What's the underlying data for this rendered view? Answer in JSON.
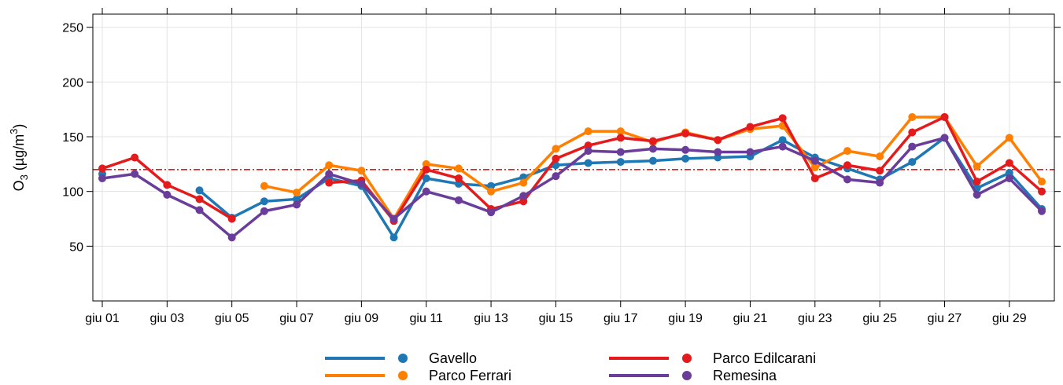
{
  "chart_data": {
    "type": "line",
    "ylabel": {
      "base": "O",
      "sub": "3",
      "mid": " (µg/m",
      "sup": "3",
      "end": ")"
    },
    "ylim": [
      0,
      262
    ],
    "y_ticks": [
      50,
      100,
      150,
      200,
      250
    ],
    "x": [
      "giu 01",
      "giu 02",
      "giu 03",
      "giu 04",
      "giu 05",
      "giu 06",
      "giu 07",
      "giu 08",
      "giu 09",
      "giu 10",
      "giu 11",
      "giu 12",
      "giu 13",
      "giu 14",
      "giu 15",
      "giu 16",
      "giu 17",
      "giu 18",
      "giu 19",
      "giu 20",
      "giu 21",
      "giu 22",
      "giu 23",
      "giu 24",
      "giu 25",
      "giu 26",
      "giu 27",
      "giu 28",
      "giu 29",
      "giu 30"
    ],
    "x_tick_labels": [
      "giu 01",
      "giu 03",
      "giu 05",
      "giu 07",
      "giu 09",
      "giu 11",
      "giu 13",
      "giu 15",
      "giu 17",
      "giu 19",
      "giu 21",
      "giu 23",
      "giu 25",
      "giu 27",
      "giu 29"
    ],
    "threshold": {
      "value": 120,
      "color": "#e41a1c",
      "style": "dot-dash"
    },
    "grid": true,
    "legend_position": "bottom",
    "series": [
      {
        "name": "Gavello",
        "color": "#1f78b4",
        "values": [
          116,
          null,
          null,
          101,
          76,
          91,
          93,
          112,
          105,
          58,
          112,
          107,
          105,
          113,
          124,
          126,
          127,
          128,
          130,
          131,
          132,
          147,
          131,
          121,
          111,
          127,
          149,
          103,
          117,
          84
        ]
      },
      {
        "name": "Parco Ferrari",
        "color": "#ff7f00",
        "values": [
          null,
          null,
          null,
          null,
          null,
          105,
          99,
          124,
          119,
          75,
          125,
          121,
          100,
          108,
          139,
          155,
          155,
          145,
          154,
          147,
          157,
          160,
          122,
          137,
          132,
          168,
          168,
          123,
          149,
          109
        ]
      },
      {
        "name": "Parco Edilcarani",
        "color": "#e41a1c",
        "values": [
          121,
          131,
          106,
          93,
          75,
          null,
          null,
          108,
          110,
          73,
          120,
          112,
          84,
          91,
          130,
          142,
          149,
          146,
          153,
          147,
          159,
          167,
          112,
          124,
          119,
          154,
          168,
          109,
          126,
          100
        ]
      },
      {
        "name": "Remesina",
        "color": "#6a3d9a",
        "values": [
          112,
          116,
          97,
          83,
          58,
          82,
          88,
          116,
          107,
          75,
          100,
          92,
          81,
          96,
          114,
          137,
          136,
          139,
          138,
          136,
          136,
          141,
          128,
          111,
          108,
          141,
          149,
          97,
          112,
          82
        ]
      }
    ]
  }
}
